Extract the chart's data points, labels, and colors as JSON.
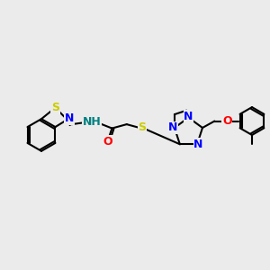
{
  "bg_color": "#ebebeb",
  "bond_color": "#000000",
  "bond_width": 1.5,
  "atom_colors": {
    "S": "#cccc00",
    "N": "#0000ff",
    "O": "#ff0000",
    "H": "#008080",
    "C": "#000000"
  },
  "font_size": 9,
  "figsize": [
    3.0,
    3.0
  ],
  "dpi": 100
}
